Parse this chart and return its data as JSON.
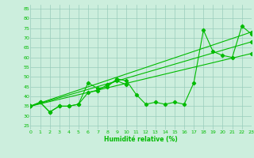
{
  "x_main": [
    0,
    1,
    2,
    3,
    4,
    5,
    6,
    7,
    8,
    9,
    10,
    11,
    12,
    13,
    14,
    15,
    16,
    17,
    18,
    19,
    20,
    21,
    22,
    23
  ],
  "y_main": [
    35,
    37,
    32,
    35,
    35,
    36,
    47,
    44,
    45,
    49,
    48,
    41,
    36,
    37,
    36,
    37,
    36,
    47,
    74,
    63,
    61,
    60,
    76,
    72
  ],
  "x_short": [
    0,
    1,
    2,
    3,
    4,
    5,
    6,
    7,
    8,
    9,
    10
  ],
  "y_short": [
    35,
    37,
    32,
    35,
    35,
    36,
    42,
    43,
    46,
    48,
    46
  ],
  "reg_lines": [
    {
      "x": [
        0,
        23
      ],
      "y": [
        35,
        73
      ]
    },
    {
      "x": [
        0,
        23
      ],
      "y": [
        35,
        68
      ]
    },
    {
      "x": [
        0,
        23
      ],
      "y": [
        35,
        62
      ]
    }
  ],
  "xlim": [
    0,
    23
  ],
  "ylim": [
    23,
    87
  ],
  "yticks": [
    25,
    30,
    35,
    40,
    45,
    50,
    55,
    60,
    65,
    70,
    75,
    80,
    85
  ],
  "xticks": [
    0,
    1,
    2,
    3,
    4,
    5,
    6,
    7,
    8,
    9,
    10,
    11,
    12,
    13,
    14,
    15,
    16,
    17,
    18,
    19,
    20,
    21,
    22,
    23
  ],
  "xlabel": "Humidité relative (%)",
  "line_color": "#00bb00",
  "bg_color": "#cceedd",
  "grid_color": "#99ccbb",
  "marker": "D",
  "markersize": 2.2,
  "linewidth": 0.8
}
